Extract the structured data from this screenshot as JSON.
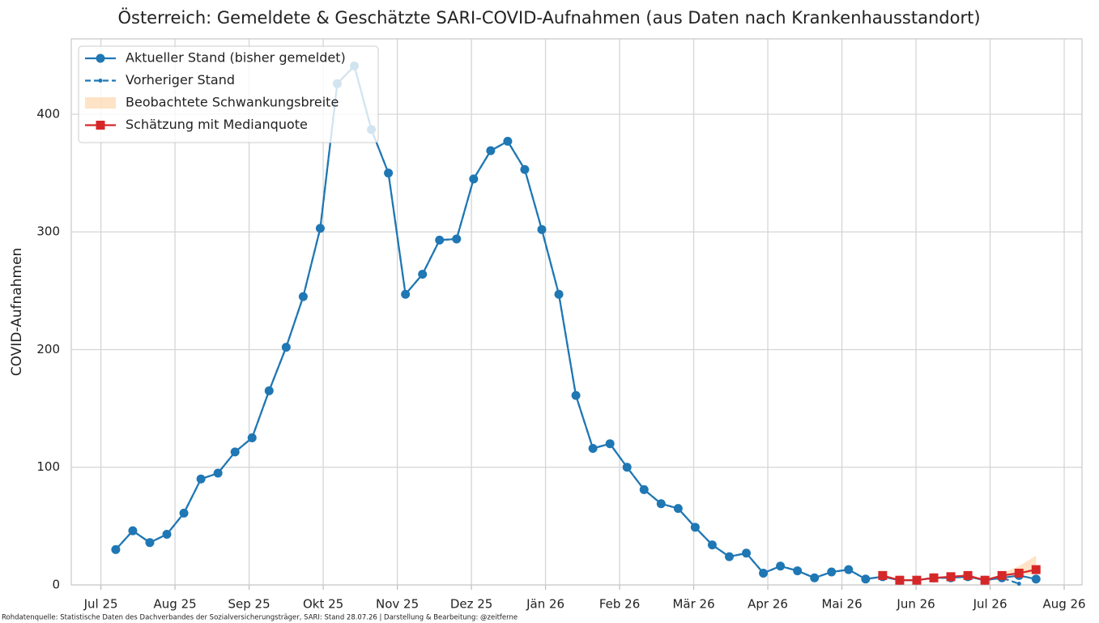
{
  "chart_data": {
    "type": "line",
    "title": "Österreich: Gemeldete & Geschätzte SARI-COVID-Aufnahmen (aus Daten nach Krankenhausstandort)",
    "ylabel": "COVID-Aufnahmen",
    "footnote": "Rohdatenquelle: Statistische Daten des Dachverbandes der Sozialversicherungsträger, SARI: Stand 28.07.26 | Darstellung & Bearbeitung: @zeitferne",
    "grid": true,
    "legend": "upper left",
    "xlim": [
      -0.4,
      13.24
    ],
    "xticks": [
      {
        "value": 0,
        "label": "Jul 25"
      },
      {
        "value": 1,
        "label": "Aug 25"
      },
      {
        "value": 2,
        "label": "Sep 25"
      },
      {
        "value": 3,
        "label": "Okt 25"
      },
      {
        "value": 4,
        "label": "Nov 25"
      },
      {
        "value": 5,
        "label": "Dez 25"
      },
      {
        "value": 6,
        "label": "Jän 26"
      },
      {
        "value": 7,
        "label": "Feb 26"
      },
      {
        "value": 8,
        "label": "Mär 26"
      },
      {
        "value": 9,
        "label": "Apr 26"
      },
      {
        "value": 10,
        "label": "Mai 26"
      },
      {
        "value": 11,
        "label": "Jun 26"
      },
      {
        "value": 12,
        "label": "Jul 26"
      },
      {
        "value": 13,
        "label": "Aug 26"
      }
    ],
    "ylim": [
      0,
      464
    ],
    "yticks": [
      0,
      100,
      200,
      300,
      400
    ],
    "x": [
      0.2,
      0.43,
      0.66,
      0.89,
      1.12,
      1.35,
      1.58,
      1.81,
      2.04,
      2.27,
      2.5,
      2.73,
      2.96,
      3.19,
      3.42,
      3.65,
      3.88,
      4.11,
      4.34,
      4.57,
      4.8,
      5.03,
      5.26,
      5.49,
      5.72,
      5.95,
      6.18,
      6.41,
      6.64,
      6.87,
      7.1,
      7.33,
      7.56,
      7.79,
      8.02,
      8.25,
      8.48,
      8.71,
      8.94,
      9.17,
      9.4,
      9.63,
      9.86,
      10.09,
      10.32,
      10.55,
      10.78,
      11.01,
      11.24,
      11.47,
      11.7,
      11.93,
      12.16,
      12.39,
      12.62
    ],
    "series": [
      {
        "name": "Aktueller Stand (bisher gemeldet)",
        "kind": "line",
        "color": "#1f77b4",
        "linestyle": "solid",
        "marker": "circle",
        "values": [
          30,
          46,
          36,
          43,
          61,
          90,
          95,
          113,
          125,
          165,
          202,
          245,
          303,
          426,
          441,
          387,
          350,
          247,
          264,
          293,
          294,
          345,
          369,
          377,
          353,
          302,
          247,
          161,
          116,
          120,
          100,
          81,
          69,
          65,
          49,
          34,
          24,
          27,
          10,
          16,
          12,
          6,
          11,
          13,
          5,
          7,
          4,
          4,
          6,
          6,
          7,
          4,
          6,
          8,
          5
        ]
      },
      {
        "name": "Vorheriger Stand",
        "kind": "line",
        "color": "#1f77b4",
        "linestyle": "dashed",
        "marker": "dot",
        "values": [
          30,
          46,
          36,
          43,
          61,
          90,
          95,
          113,
          125,
          165,
          202,
          245,
          303,
          426,
          441,
          387,
          350,
          247,
          264,
          293,
          294,
          345,
          369,
          377,
          353,
          302,
          247,
          161,
          116,
          120,
          100,
          81,
          69,
          65,
          49,
          34,
          24,
          27,
          10,
          16,
          12,
          6,
          11,
          13,
          5,
          7,
          4,
          4,
          6,
          6,
          7,
          4,
          6,
          1,
          null
        ]
      },
      {
        "name": "Beobachtete Schwankungsbreite",
        "kind": "band",
        "color": "#fdd0a2",
        "lower": [
          null,
          null,
          null,
          null,
          null,
          null,
          null,
          null,
          null,
          null,
          null,
          null,
          null,
          null,
          null,
          null,
          null,
          null,
          null,
          null,
          null,
          null,
          null,
          null,
          null,
          null,
          null,
          null,
          null,
          null,
          null,
          null,
          null,
          null,
          null,
          null,
          null,
          null,
          null,
          null,
          null,
          null,
          null,
          null,
          null,
          null,
          null,
          null,
          null,
          null,
          null,
          null,
          6,
          8,
          10
        ],
        "upper": [
          null,
          null,
          null,
          null,
          null,
          null,
          null,
          null,
          null,
          null,
          null,
          null,
          null,
          null,
          null,
          null,
          null,
          null,
          null,
          null,
          null,
          null,
          null,
          null,
          null,
          null,
          null,
          null,
          null,
          null,
          null,
          null,
          null,
          null,
          null,
          null,
          null,
          null,
          null,
          null,
          null,
          null,
          null,
          null,
          null,
          null,
          null,
          null,
          null,
          null,
          null,
          null,
          10,
          16,
          25
        ]
      },
      {
        "name": "Schätzung mit Medianquote",
        "kind": "line",
        "color": "#d62728",
        "linestyle": "solid",
        "marker": "square",
        "values": [
          null,
          null,
          null,
          null,
          null,
          null,
          null,
          null,
          null,
          null,
          null,
          null,
          null,
          null,
          null,
          null,
          null,
          null,
          null,
          null,
          null,
          null,
          null,
          null,
          null,
          null,
          null,
          null,
          null,
          null,
          null,
          null,
          null,
          null,
          null,
          null,
          null,
          null,
          null,
          null,
          null,
          null,
          null,
          null,
          null,
          8,
          4,
          4,
          6,
          7,
          8,
          4,
          8,
          10,
          13
        ]
      }
    ]
  }
}
